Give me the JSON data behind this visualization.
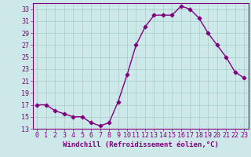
{
  "hours": [
    0,
    1,
    2,
    3,
    4,
    5,
    6,
    7,
    8,
    9,
    10,
    11,
    12,
    13,
    14,
    15,
    16,
    17,
    18,
    19,
    20,
    21,
    22,
    23
  ],
  "values": [
    17,
    17,
    16,
    15.5,
    15,
    15,
    14,
    13.5,
    14,
    17.5,
    22,
    27,
    30,
    32,
    32,
    32,
    33.5,
    33,
    31.5,
    29,
    27,
    25,
    22.5,
    21.5
  ],
  "line_color": "#800080",
  "marker": "D",
  "bg_color": "#cce8e8",
  "grid_color": "#aacccc",
  "xlabel": "Windchill (Refroidissement éolien,°C)",
  "xlabel_fontsize": 6.5,
  "tick_fontsize": 6.0,
  "ylim": [
    13,
    34
  ],
  "xlim": [
    -0.5,
    23.5
  ],
  "yticks": [
    13,
    15,
    17,
    19,
    21,
    23,
    25,
    27,
    29,
    31,
    33
  ],
  "xticks": [
    0,
    1,
    2,
    3,
    4,
    5,
    6,
    7,
    8,
    9,
    10,
    11,
    12,
    13,
    14,
    15,
    16,
    17,
    18,
    19,
    20,
    21,
    22,
    23
  ]
}
